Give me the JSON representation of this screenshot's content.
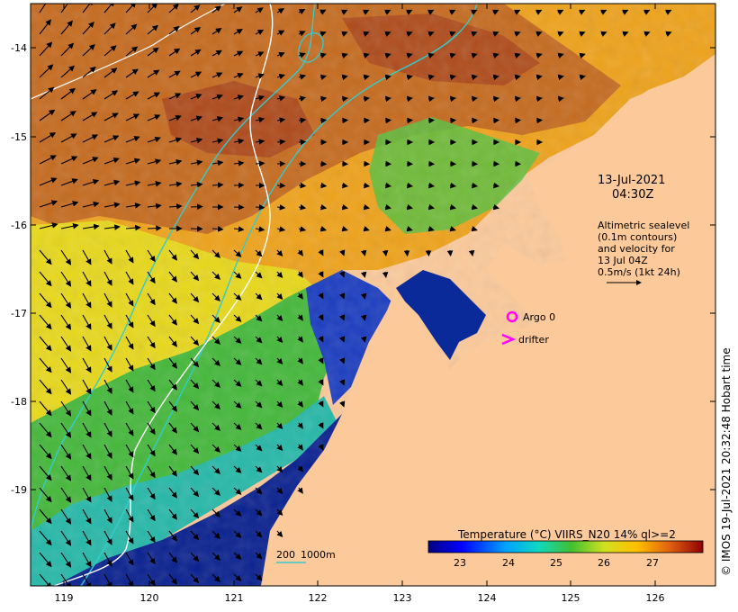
{
  "map": {
    "x_ticks": [
      "119",
      "120",
      "121",
      "122",
      "123",
      "124",
      "125",
      "126"
    ],
    "y_ticks": [
      "-14",
      "-15",
      "-16",
      "-17",
      "-18",
      "-19"
    ],
    "timestamp": {
      "date": "13-Jul-2021",
      "time": "04:30Z"
    },
    "altimetry_legend": [
      "Altimetric sealevel",
      "(0.1m contours)",
      "and velocity for",
      "13 Jul 04Z",
      "0.5m/s (1kt 24h)"
    ],
    "markers": {
      "argo_label": "Argo 0",
      "drifter_label": "drifter",
      "marker_color": "#ff00ff"
    },
    "scale_bar": {
      "label_200": "200",
      "label_1000": "1000m"
    },
    "colorbar": {
      "title": "Temperature (°C) VIIRS_N20 14% ql>=2",
      "ticks": [
        "23",
        "24",
        "25",
        "26",
        "27"
      ]
    },
    "copyright": "© IMOS 19-Jul-2021 20:32:48 Hobart time",
    "colors": {
      "land": "#fcc99a",
      "sst_cold": "#001a8c",
      "sst_cool": "#21c1c0",
      "sst_mid": "#33b533",
      "sst_warm": "#f0b000",
      "sst_hot": "#b04a14",
      "contour_cyan": "#33cccc",
      "contour_white": "#ffffff"
    }
  }
}
